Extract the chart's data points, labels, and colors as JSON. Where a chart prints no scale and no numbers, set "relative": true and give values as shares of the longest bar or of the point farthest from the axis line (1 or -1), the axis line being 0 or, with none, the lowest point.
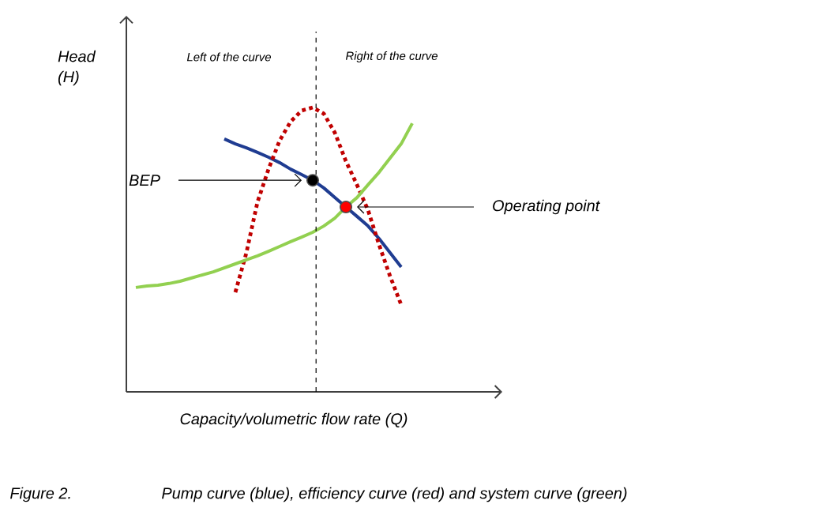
{
  "chart_data": {
    "type": "line",
    "relative": true,
    "xlabel": "Capacity/volumetric flow rate (Q)",
    "ylabel": "Head (H)",
    "categories": [
      null,
      null,
      null,
      null,
      null,
      null,
      null,
      null,
      null,
      null,
      null,
      null,
      null,
      null,
      null,
      null,
      null,
      null,
      null,
      null,
      null,
      null,
      null,
      null,
      null,
      null
    ],
    "series": [
      {
        "color": "#1f3c91",
        "line_style": "solid",
        "values": [
          null,
          null,
          null,
          null,
          null,
          null,
          null,
          null,
          0.889,
          0.872,
          0.858,
          0.842,
          0.825,
          0.806,
          0.783,
          0.764,
          0.744,
          0.717,
          0.683,
          0.65,
          0.617,
          0.583,
          0.539,
          0.489,
          0.439,
          null
        ]
      },
      {
        "color": "#c00000",
        "line_style": "dotted",
        "values": [
          null,
          null,
          null,
          null,
          null,
          null,
          null,
          null,
          null,
          0.35,
          0.489,
          0.667,
          0.783,
          0.883,
          0.95,
          0.989,
          1.0,
          0.978,
          0.911,
          0.811,
          0.728,
          0.639,
          0.517,
          0.406,
          0.306,
          null
        ]
      },
      {
        "color": "#92d050",
        "line_style": "solid",
        "values": [
          0.367,
          0.372,
          0.375,
          0.381,
          0.389,
          0.4,
          0.411,
          0.422,
          0.436,
          0.45,
          0.464,
          0.478,
          0.494,
          0.511,
          0.528,
          0.544,
          0.561,
          0.583,
          0.611,
          0.65,
          0.683,
          0.728,
          0.772,
          0.822,
          0.872,
          0.944
        ]
      },
      {
        "color": "#000000",
        "marker": "circle",
        "values": [
          null,
          null,
          null,
          null,
          null,
          null,
          null,
          null,
          null,
          null,
          null,
          null,
          null,
          null,
          null,
          null,
          0.744,
          null,
          null,
          null,
          null,
          null,
          null,
          null,
          null,
          null
        ]
      },
      {
        "color": "#ff0000",
        "marker": "circle",
        "values": [
          null,
          null,
          null,
          null,
          null,
          null,
          null,
          null,
          null,
          null,
          null,
          null,
          null,
          null,
          null,
          null,
          null,
          null,
          null,
          0.65,
          null,
          null,
          null,
          null,
          null,
          null
        ]
      }
    ],
    "annotations": [
      "Left of the curve",
      "Right of the curve",
      "BEP",
      "Operating point",
      "Figure 2.",
      "Pump curve (blue), efficiency curve (red) and system curve (green)"
    ]
  }
}
